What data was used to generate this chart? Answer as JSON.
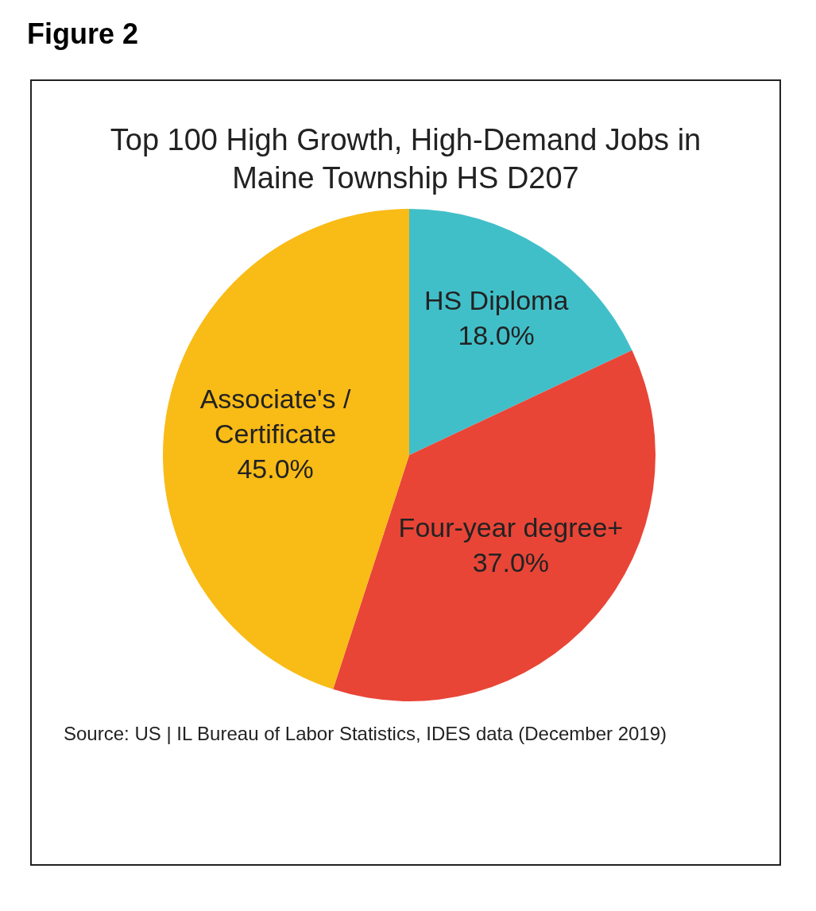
{
  "chart_data": {
    "type": "pie",
    "title": "Figure 2",
    "subtitle": "Top 100 High Growth, High-Demand Jobs in Maine Township HS D207",
    "categories": [
      "HS Diploma",
      "Four-year degree+",
      "Associate's / Certificate"
    ],
    "values": [
      18,
      37,
      45
    ],
    "colors": [
      "#41bfc9",
      "#e84537",
      "#f9bb16"
    ],
    "value_labels": [
      "18.0%",
      "37.0%",
      "45.0%"
    ],
    "annotations": [
      "Source: US | IL Bureau of Labor Statistics, IDES data (December 2019)"
    ]
  }
}
